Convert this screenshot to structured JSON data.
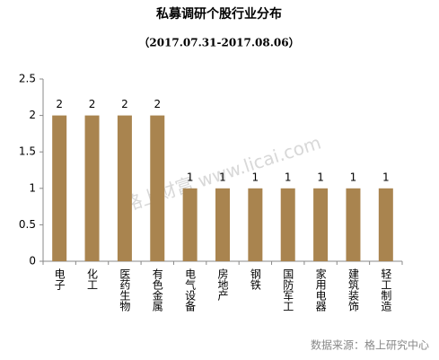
{
  "chart_data": {
    "type": "bar",
    "title": "私募调研个股行业分布",
    "subtitle": "（2017.07.31-2017.08.06）",
    "categories": [
      "电子",
      "化工",
      "医药生物",
      "有色金属",
      "电气设备",
      "房地产",
      "钢铁",
      "国防军工",
      "家用电器",
      "建筑装饰",
      "轻工制造"
    ],
    "values": [
      2,
      2,
      2,
      2,
      1,
      1,
      1,
      1,
      1,
      1,
      1
    ],
    "color": "#a9844f",
    "ylim": [
      0,
      2.5
    ],
    "yticks": [
      0,
      0.5,
      1,
      1.5,
      2,
      2.5
    ],
    "grid": false,
    "watermark": "格上财富 www.licai.com",
    "source": "数据来源：格上研究中心"
  }
}
